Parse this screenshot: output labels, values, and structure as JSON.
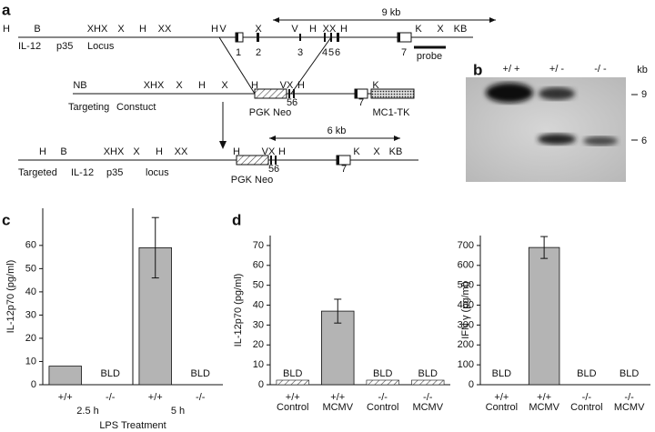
{
  "panel_labels": [
    "a",
    "b",
    "c",
    "d"
  ],
  "diagram": {
    "wild_type": {
      "sites": [
        "H",
        "B",
        "XHX",
        "X",
        "H",
        "XX",
        "H",
        "V",
        "X",
        "V",
        "H",
        "XX",
        "H",
        "K",
        "X",
        "KB"
      ],
      "labels": [
        "IL-12",
        "p35",
        "Locus"
      ],
      "exons": [
        "1",
        "2",
        "3",
        "4",
        "5",
        "6",
        "7"
      ],
      "distance": "9 kb",
      "probe": "probe"
    },
    "targeting": {
      "sites": [
        "NB",
        "XHX",
        "X",
        "H",
        "X",
        "H",
        "VX",
        "H",
        "K"
      ],
      "labels": [
        "Targeting",
        "Constuct"
      ],
      "exons": [
        "5",
        "6",
        "7"
      ],
      "cassettes": [
        "PGK Neo",
        "MC1-TK"
      ]
    },
    "targeted": {
      "sites": [
        "H",
        "B",
        "XHX",
        "X",
        "H",
        "XX",
        "H",
        "VX",
        "H",
        "K",
        "X",
        "KB"
      ],
      "labels": [
        "Targeted",
        "IL-12",
        "p35",
        "locus"
      ],
      "exons": [
        "5",
        "6",
        "7"
      ],
      "cassettes": [
        "PGK Neo"
      ],
      "distance": "6 kb"
    }
  },
  "blot": {
    "lanes": [
      "+/ +",
      "+/ -",
      "-/ -"
    ],
    "unit": "kb",
    "markers": [
      "9",
      "6"
    ]
  },
  "chart_data": [
    {
      "type": "bar",
      "ylabel": "IL-12p70 (pg/ml)",
      "xlabel": "LPS Treatment",
      "categories": [
        "+/+",
        "-/-",
        "+/+",
        "-/-"
      ],
      "groups": [
        "2.5 h",
        "5 h"
      ],
      "values": [
        8,
        null,
        59,
        null
      ],
      "errors": [
        null,
        null,
        13,
        null
      ],
      "value_labels": [
        null,
        "BLD",
        null,
        "BLD"
      ],
      "color": "#b4b4b4",
      "ylim": [
        0,
        76
      ],
      "yticks": [
        0,
        10,
        20,
        30,
        40,
        50,
        60
      ]
    },
    {
      "type": "bar",
      "ylabel": "IL-12p70 (pg/ml)",
      "categories": [
        "+/+",
        "+/+",
        "-/-",
        "-/-"
      ],
      "subcategories": [
        "Control",
        "MCMV",
        "Control",
        "MCMV"
      ],
      "values": [
        null,
        37,
        null,
        null
      ],
      "errors": [
        null,
        6,
        null,
        null
      ],
      "value_labels": [
        "BLD",
        null,
        "BLD",
        "BLD"
      ],
      "color": "#b4b4b4",
      "ylim": [
        0,
        75
      ],
      "yticks": [
        0,
        10,
        20,
        30,
        40,
        50,
        60,
        70
      ]
    },
    {
      "type": "bar",
      "ylabel": "IFN γ (pg/ml)",
      "categories": [
        "+/+",
        "+/+",
        "-/-",
        "-/-"
      ],
      "subcategories": [
        "Control",
        "MCMV",
        "Control",
        "MCMV"
      ],
      "values": [
        null,
        690,
        null,
        null
      ],
      "errors": [
        null,
        55,
        null,
        null
      ],
      "value_labels": [
        "BLD",
        null,
        "BLD",
        "BLD"
      ],
      "color": "#b4b4b4",
      "ylim": [
        0,
        750
      ],
      "yticks": [
        0,
        100,
        200,
        300,
        400,
        500,
        600,
        700
      ]
    }
  ]
}
